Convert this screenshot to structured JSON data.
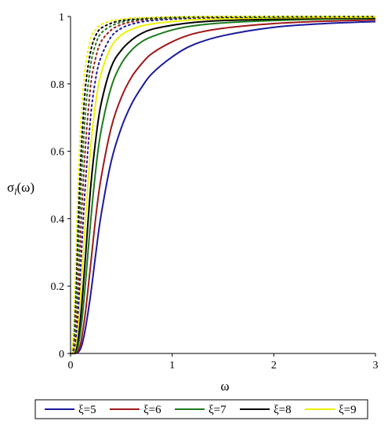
{
  "chart_data": {
    "type": "line",
    "xlabel": "ω",
    "ylabel_main": "σ",
    "ylabel_sub": "l",
    "ylabel_tail": "(ω)",
    "xlim": [
      0,
      3
    ],
    "ylim": [
      0,
      1
    ],
    "x_ticks": [
      0,
      1,
      2,
      3
    ],
    "y_ticks": [
      0,
      0.2,
      0.4,
      0.6,
      0.8,
      1
    ],
    "grid": false,
    "legend_position": "bottom",
    "x": [
      0,
      0.02,
      0.04,
      0.06,
      0.08,
      0.1,
      0.12,
      0.15,
      0.2,
      0.25,
      0.3,
      0.4,
      0.5,
      0.6,
      0.7,
      0.8,
      1.0,
      1.2,
      1.5,
      2.0,
      2.5,
      3.0
    ],
    "series": [
      {
        "name": "ξ=5",
        "color": "#1a1a9c",
        "dash": "solid",
        "values": [
          0,
          0,
          0,
          0.001,
          0.005,
          0.015,
          0.035,
          0.08,
          0.18,
          0.3,
          0.41,
          0.57,
          0.67,
          0.74,
          0.79,
          0.83,
          0.88,
          0.915,
          0.943,
          0.968,
          0.979,
          0.985
        ]
      },
      {
        "name": "ξ=6",
        "color": "#a01818",
        "dash": "solid",
        "values": [
          0,
          0,
          0,
          0.003,
          0.012,
          0.03,
          0.065,
          0.13,
          0.27,
          0.41,
          0.52,
          0.67,
          0.76,
          0.82,
          0.86,
          0.89,
          0.925,
          0.948,
          0.965,
          0.979,
          0.986,
          0.99
        ]
      },
      {
        "name": "ξ=7",
        "color": "#1e7a1e",
        "dash": "solid",
        "values": [
          0,
          0,
          0.002,
          0.01,
          0.03,
          0.07,
          0.12,
          0.22,
          0.4,
          0.55,
          0.66,
          0.79,
          0.86,
          0.9,
          0.925,
          0.94,
          0.96,
          0.972,
          0.981,
          0.988,
          0.992,
          0.994
        ]
      },
      {
        "name": "ξ=8",
        "color": "#000000",
        "dash": "solid",
        "values": [
          0,
          0,
          0.004,
          0.02,
          0.055,
          0.11,
          0.18,
          0.3,
          0.5,
          0.64,
          0.74,
          0.85,
          0.9,
          0.93,
          0.95,
          0.962,
          0.974,
          0.982,
          0.988,
          0.992,
          0.995,
          0.996
        ]
      },
      {
        "name": "ξ=9",
        "color": "#f0f000",
        "dash": "solid",
        "values": [
          0,
          0.001,
          0.01,
          0.04,
          0.1,
          0.18,
          0.27,
          0.41,
          0.62,
          0.75,
          0.83,
          0.91,
          0.945,
          0.962,
          0.972,
          0.978,
          0.985,
          0.99,
          0.993,
          0.996,
          0.997,
          0.998
        ]
      },
      {
        "color": "#1a1a9c",
        "dash": "dotted",
        "values": [
          0,
          0.002,
          0.02,
          0.07,
          0.15,
          0.26,
          0.37,
          0.52,
          0.71,
          0.82,
          0.88,
          0.94,
          0.965,
          0.977,
          0.984,
          0.988,
          0.992,
          0.995,
          0.997,
          0.998,
          0.999,
          0.999
        ]
      },
      {
        "color": "#a01818",
        "dash": "dotted",
        "values": [
          0,
          0.004,
          0.04,
          0.12,
          0.23,
          0.36,
          0.48,
          0.63,
          0.8,
          0.88,
          0.925,
          0.96,
          0.976,
          0.984,
          0.989,
          0.992,
          0.995,
          0.997,
          0.998,
          0.999,
          0.999,
          1.0
        ]
      },
      {
        "color": "#1e7a1e",
        "dash": "dotted",
        "values": [
          0,
          0.008,
          0.07,
          0.19,
          0.33,
          0.47,
          0.59,
          0.73,
          0.86,
          0.92,
          0.95,
          0.972,
          0.983,
          0.989,
          0.992,
          0.994,
          0.996,
          0.998,
          0.999,
          0.999,
          1.0,
          1.0
        ]
      },
      {
        "color": "#000000",
        "dash": "dotted",
        "values": [
          0,
          0.015,
          0.11,
          0.27,
          0.43,
          0.57,
          0.68,
          0.8,
          0.9,
          0.945,
          0.965,
          0.98,
          0.988,
          0.992,
          0.994,
          0.996,
          0.998,
          0.999,
          0.999,
          1.0,
          1.0,
          1.0
        ]
      },
      {
        "color": "#f0f000",
        "dash": "dotted",
        "values": [
          0,
          0.025,
          0.17,
          0.37,
          0.55,
          0.68,
          0.77,
          0.86,
          0.935,
          0.962,
          0.976,
          0.987,
          0.992,
          0.995,
          0.996,
          0.997,
          0.999,
          0.999,
          1.0,
          1.0,
          1.0,
          1.0
        ]
      }
    ]
  }
}
